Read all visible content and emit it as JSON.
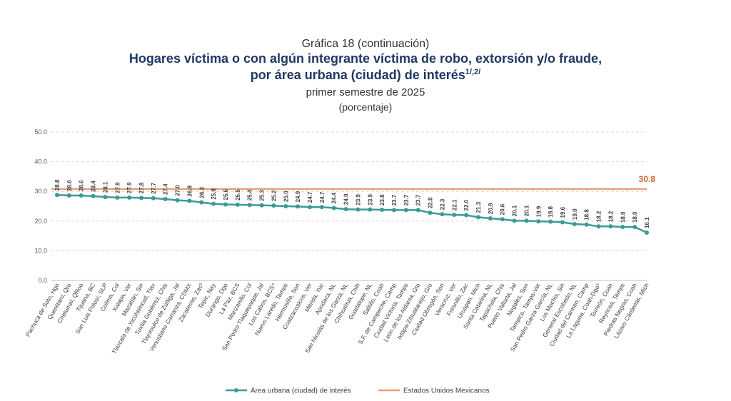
{
  "title": {
    "kicker": "Gráfica 18 (continuación)",
    "line1": "Hogares víctima o con algún integrante víctima de robo, extorsión y/o fraude,",
    "line2": "por área urbana (ciudad) de interés",
    "line2_sup": "1/,2/",
    "period": "primer semestre de 2025",
    "unit": "(porcentaje)"
  },
  "chart_data": {
    "type": "line",
    "ylim": [
      0,
      50
    ],
    "yticks": [
      "0.0",
      "10.0",
      "20.0",
      "30.0",
      "40.0",
      "50.0"
    ],
    "grid": true,
    "legend_position": "bottom",
    "colors": {
      "series": "#3a9b94",
      "reference": "#e8a07a",
      "reference_label": "#c8642e"
    },
    "categories": [
      "Pachuca de Soto, Hgo",
      "Querétaro, Qro",
      "Chetumal, QRoo",
      "Tijuana, BC",
      "San Luis Potosí, SLP",
      "Colima, Col",
      "Xalapa, Ver",
      "Mazatlán, Sin",
      "Tlaxcala de Xicohténcatl, Tlax",
      "Tuxtla Gutiérrez, Chis",
      "Tlajomulco de Zúñiga, Jal",
      "Venustiano Carranza, CDMX",
      "Zacatecas, Zac³",
      "Tepic, Nay",
      "Durango, Dgo",
      "La Paz, BCS",
      "Manzanillo, Col",
      "San Pedro Tlaquepaque, Jal",
      "Los Cabos, BCS⁴",
      "Nuevo Laredo, Tamps",
      "Hermosillo, Son",
      "Coatzacoalcos, Ver",
      "Mérida, Yuc",
      "Apodaca, NL",
      "San Nicolás de los Garza, NL",
      "Chihuahua, Chih",
      "Guadalupe, NL",
      "Saltillo, Coah",
      "S.F. de Campeche, Camp",
      "Ciudad Victoria, Tamps",
      "León de los Aldama, Gto",
      "Ixtapa-Zihuatanejo, Gro",
      "Ciudad Obregón, Son",
      "Veracruz, Ver",
      "Fresnillo, Zac",
      "Uruapan, Mich",
      "Santa Catarina, NL",
      "Tapachula, Chis",
      "Puerto Vallarta, Jal",
      "Nogales, Son",
      "Tampico, Tamps-Ver",
      "San Pedro Garza García, NL",
      "Los Mochis, Sin",
      "General Escobedo, NL",
      "Ciudad del Carmen, Camp",
      "La Laguna, Coah-Dgo⁵",
      "Torreón, Coah",
      "Reynosa, Tamps",
      "Piedras Negras, Coah",
      "Lázaro Cárdenas, Mich"
    ],
    "series": [
      {
        "name": "Área urbana (ciudad) de interés",
        "values": [
          28.8,
          28.6,
          28.6,
          28.4,
          28.1,
          27.9,
          27.9,
          27.8,
          27.7,
          27.4,
          27.0,
          26.8,
          26.3,
          25.8,
          25.6,
          25.5,
          25.4,
          25.3,
          25.2,
          25.0,
          24.9,
          24.7,
          24.7,
          24.4,
          24.0,
          23.9,
          23.9,
          23.8,
          23.7,
          23.7,
          23.7,
          22.8,
          22.3,
          22.1,
          22.0,
          21.3,
          20.9,
          20.6,
          20.1,
          20.1,
          19.9,
          19.8,
          19.6,
          19.0,
          18.8,
          18.2,
          18.2,
          18.0,
          18.0,
          16.1
        ],
        "labels": [
          "28.8",
          "28.6",
          "28.6",
          "28.4",
          "28.1",
          "27.9",
          "27.9",
          "27.8",
          "27.7",
          "27.4",
          "27.0",
          "26.8",
          "26.3",
          "25.8",
          "25.6",
          "25.5",
          "25.4",
          "25.3",
          "25.2",
          "25.0",
          "24.9",
          "24.7",
          "24.7",
          "24.4",
          "24.0",
          "23.9",
          "23.9",
          "23.8",
          "23.7",
          "23.7",
          "23.7",
          "22.8",
          "22.3",
          "22.1",
          "22.0",
          "21.3",
          "20.9",
          "20.6",
          "20.1",
          "20.1",
          "19.9",
          "19.8",
          "19.6",
          "19.0",
          "18.8",
          "18.2",
          "18.2",
          "18.0",
          "18.0",
          "16.1"
        ]
      }
    ],
    "reference": {
      "name": "Estados Unidos Mexicanos",
      "value": 30.8,
      "label": "30.8"
    }
  }
}
